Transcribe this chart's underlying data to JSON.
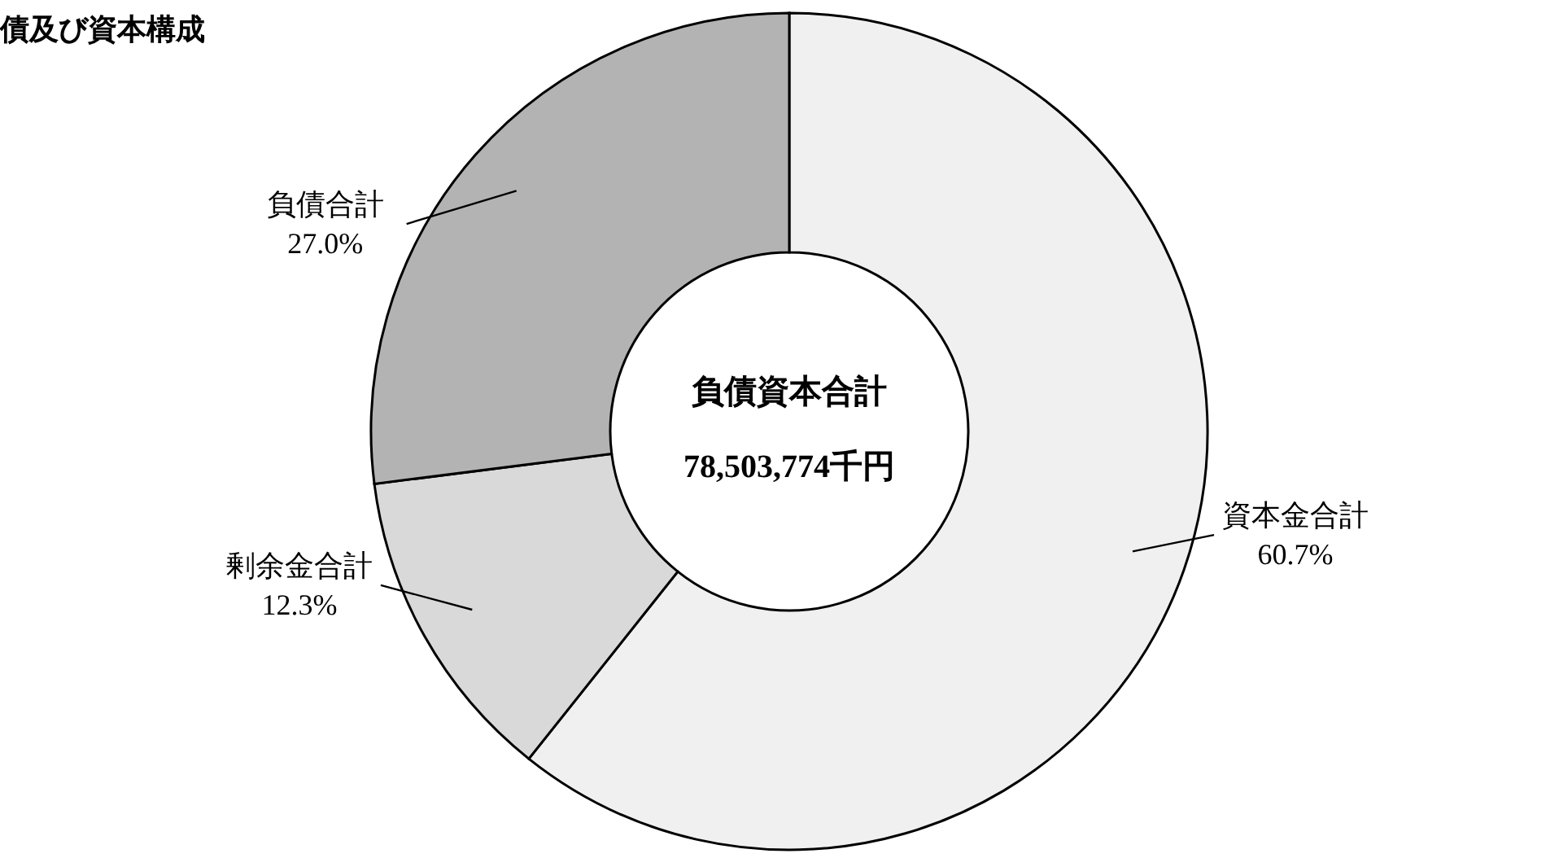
{
  "chart_data": {
    "type": "donut",
    "title": "債及び資本構成",
    "categories": [
      "資本金合計",
      "剰余金合計",
      "負債合計"
    ],
    "values": [
      60.7,
      12.3,
      27.0
    ],
    "value_labels": [
      "60.7%",
      "12.3%",
      "27.0%"
    ],
    "colors": [
      "#f0f0f0",
      "#d9d9d9",
      "#b3b3b3"
    ],
    "annotations": [
      "負債資本合計",
      "78,503,774千円"
    ]
  }
}
